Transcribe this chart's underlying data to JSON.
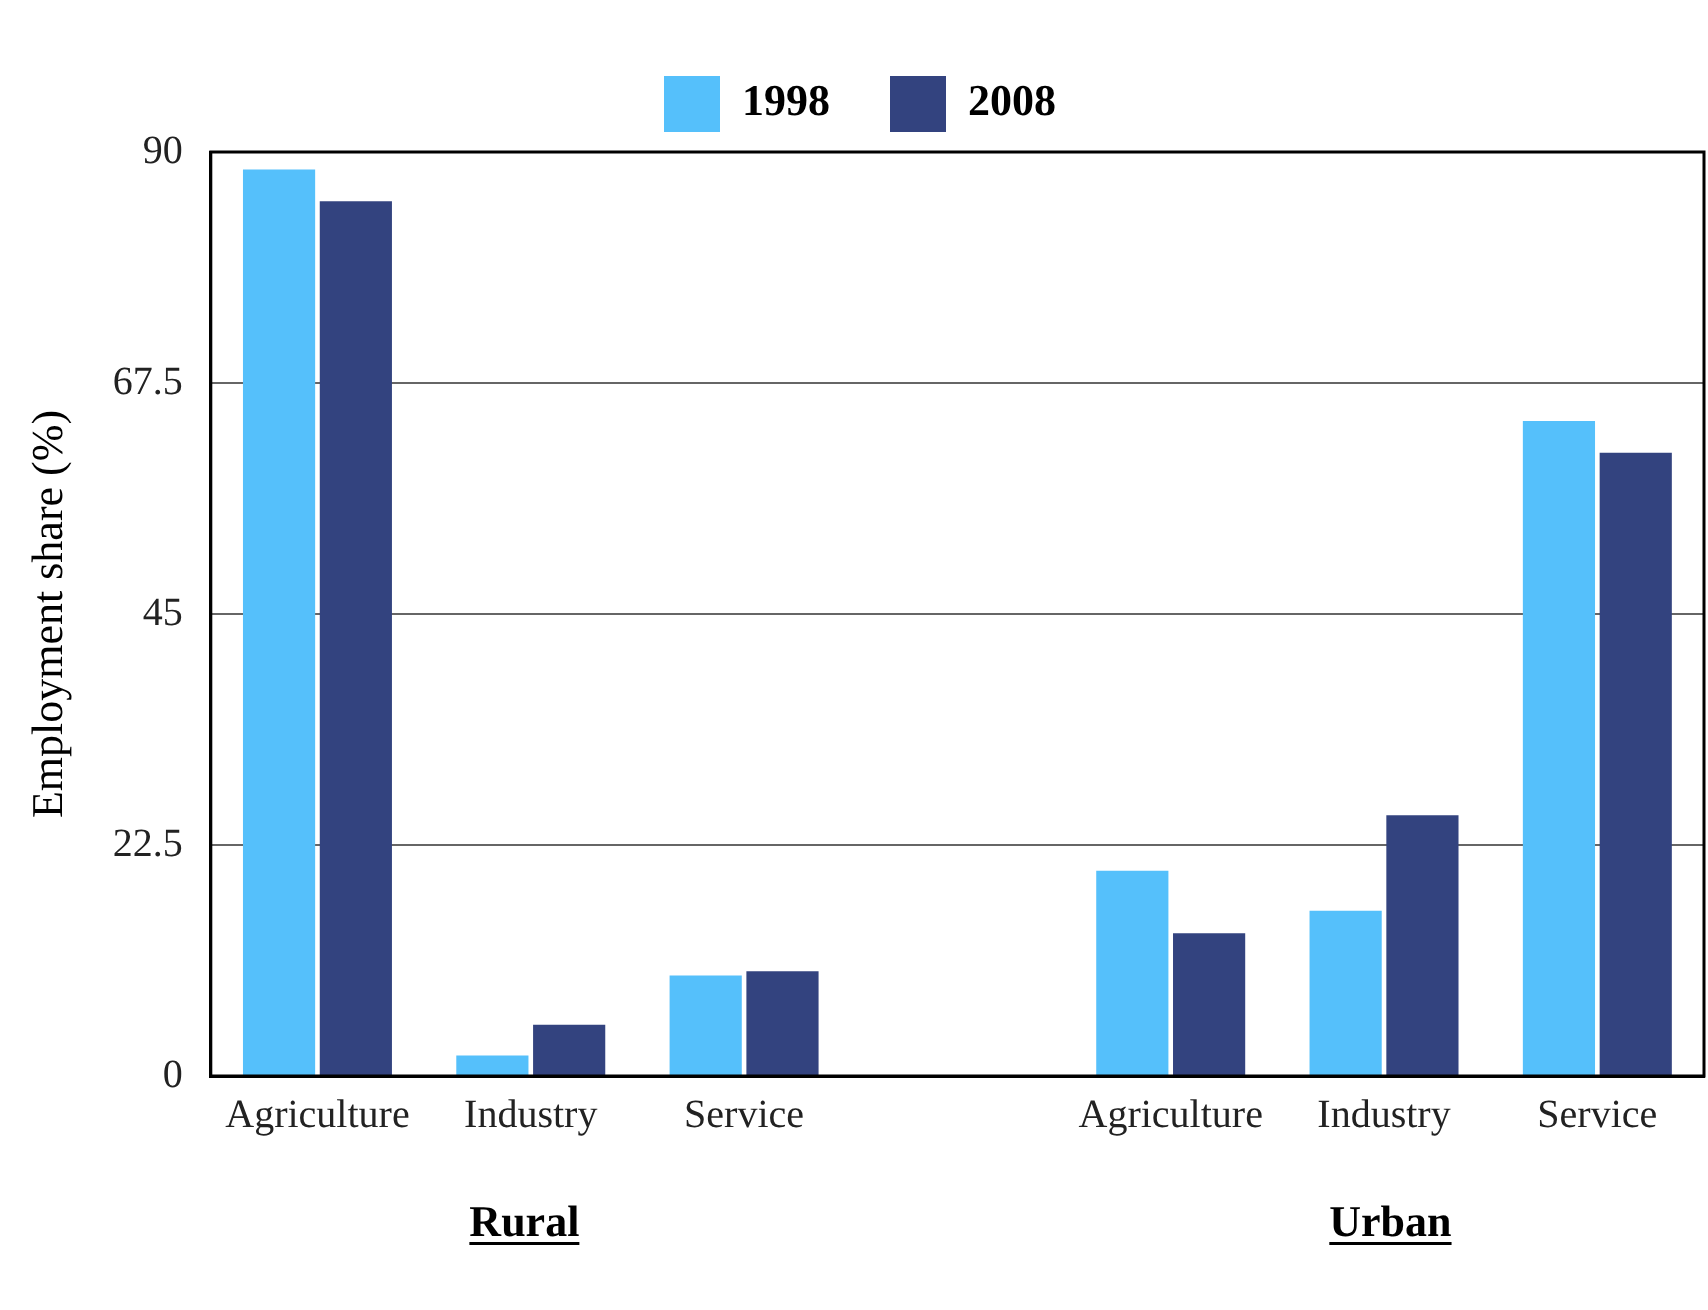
{
  "chart_data": {
    "type": "bar",
    "ylabel": "Employment share (%)",
    "categories": [
      "Agriculture",
      "Industry",
      "Service",
      null,
      "Agriculture",
      "Industry",
      "Service"
    ],
    "series": [
      {
        "name": "1998",
        "color": "#55c0fb",
        "values": [
          88.3,
          2.0,
          9.8,
          null,
          20.0,
          16.1,
          63.8
        ]
      },
      {
        "name": "2008",
        "color": "#33437f",
        "values": [
          85.2,
          5.0,
          10.2,
          null,
          13.9,
          25.4,
          60.7
        ]
      }
    ],
    "ylim": [
      0,
      90
    ],
    "yticks": [
      0,
      22.5,
      45,
      67.5,
      90
    ],
    "grid": "y",
    "legend": "top",
    "annotations": [
      "Rural",
      "Urban"
    ]
  }
}
